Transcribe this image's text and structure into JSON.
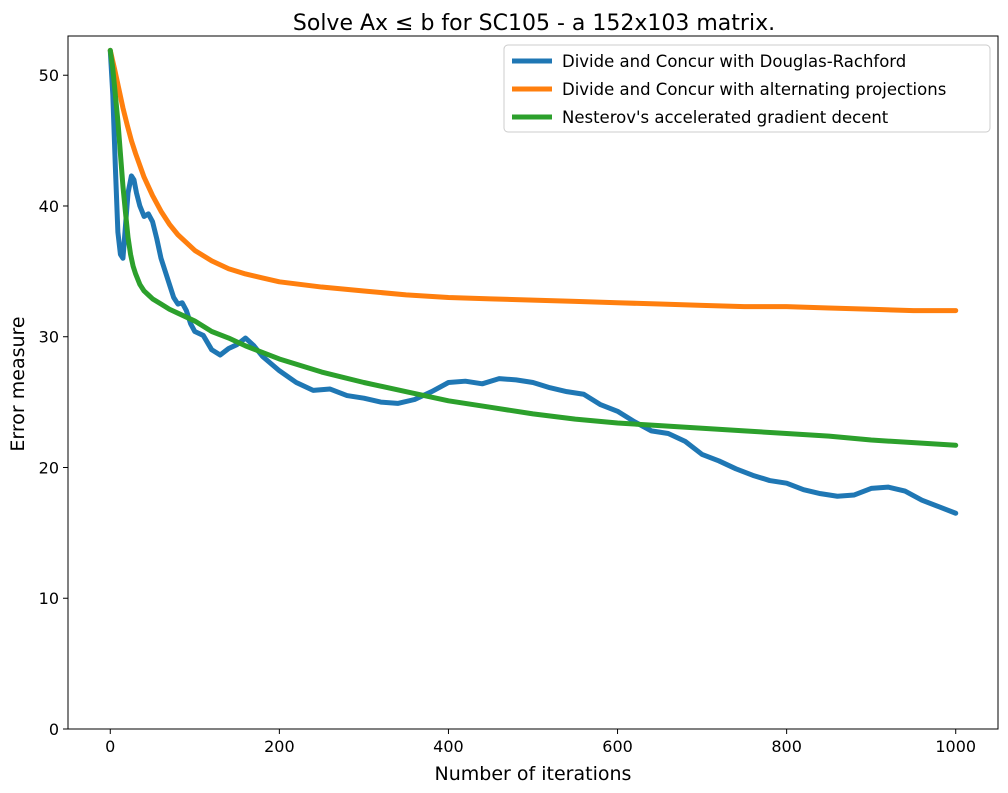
{
  "chart_data": {
    "type": "line",
    "title": "Solve Ax ≤ b for SC105 - a 152x103 matrix.",
    "xlabel": "Number of iterations",
    "ylabel": "Error measure",
    "xlim": [
      -50,
      1050
    ],
    "ylim": [
      0,
      53
    ],
    "xticks": [
      0,
      200,
      400,
      600,
      800,
      1000
    ],
    "yticks": [
      0,
      10,
      20,
      30,
      40,
      50
    ],
    "legend_position": "top-right",
    "grid": false,
    "series": [
      {
        "name": "Divide and Concur with Douglas-Rachford",
        "color": "#1f77b4",
        "x": [
          0,
          3,
          6,
          9,
          12,
          15,
          18,
          21,
          25,
          28,
          31,
          35,
          40,
          45,
          50,
          55,
          60,
          65,
          70,
          75,
          80,
          85,
          90,
          95,
          100,
          110,
          120,
          130,
          140,
          150,
          160,
          170,
          180,
          200,
          220,
          240,
          260,
          280,
          300,
          320,
          340,
          360,
          380,
          400,
          420,
          440,
          460,
          480,
          500,
          520,
          540,
          560,
          580,
          600,
          620,
          640,
          660,
          680,
          700,
          720,
          740,
          760,
          780,
          800,
          820,
          840,
          860,
          880,
          900,
          920,
          940,
          960,
          980,
          1000
        ],
        "y": [
          51.9,
          48.5,
          43.0,
          38.0,
          36.3,
          36.0,
          38.5,
          41.0,
          42.3,
          42.0,
          41.0,
          40.0,
          39.2,
          39.4,
          38.8,
          37.5,
          36.0,
          35.0,
          34.0,
          33.0,
          32.5,
          32.6,
          32.0,
          31.0,
          30.4,
          30.1,
          29.0,
          28.6,
          29.1,
          29.4,
          29.9,
          29.3,
          28.5,
          27.4,
          26.5,
          25.9,
          26.0,
          25.5,
          25.3,
          25.0,
          24.9,
          25.2,
          25.8,
          26.5,
          26.6,
          26.4,
          26.8,
          26.7,
          26.5,
          26.1,
          25.8,
          25.6,
          24.8,
          24.3,
          23.5,
          22.8,
          22.6,
          22.0,
          21.0,
          20.5,
          19.9,
          19.4,
          19.0,
          18.8,
          18.3,
          18.0,
          17.8,
          17.9,
          18.4,
          18.5,
          18.2,
          17.5,
          17.0,
          16.5
        ]
      },
      {
        "name": "Divide and Concur with alternating projections",
        "color": "#ff7f0e",
        "x": [
          0,
          5,
          10,
          15,
          20,
          25,
          30,
          40,
          50,
          60,
          70,
          80,
          90,
          100,
          120,
          140,
          160,
          180,
          200,
          250,
          300,
          350,
          400,
          450,
          500,
          550,
          600,
          650,
          700,
          750,
          800,
          850,
          900,
          950,
          1000
        ],
        "y": [
          51.9,
          50.5,
          49.0,
          47.5,
          46.2,
          45.0,
          44.0,
          42.2,
          40.8,
          39.6,
          38.6,
          37.8,
          37.2,
          36.6,
          35.8,
          35.2,
          34.8,
          34.5,
          34.2,
          33.8,
          33.5,
          33.2,
          33.0,
          32.9,
          32.8,
          32.7,
          32.6,
          32.5,
          32.4,
          32.3,
          32.3,
          32.2,
          32.1,
          32.0,
          32.0
        ]
      },
      {
        "name": "Nesterov's accelerated gradient decent",
        "color": "#2ca02c",
        "x": [
          0,
          3,
          6,
          9,
          12,
          15,
          18,
          21,
          24,
          27,
          30,
          35,
          40,
          45,
          50,
          60,
          70,
          80,
          100,
          120,
          140,
          160,
          180,
          200,
          250,
          300,
          350,
          400,
          450,
          500,
          550,
          600,
          650,
          700,
          750,
          800,
          850,
          900,
          950,
          1000
        ],
        "y": [
          51.9,
          50.5,
          48.5,
          46.5,
          44.0,
          41.5,
          39.5,
          37.6,
          36.3,
          35.4,
          34.8,
          34.0,
          33.5,
          33.2,
          32.9,
          32.5,
          32.1,
          31.8,
          31.2,
          30.4,
          29.9,
          29.3,
          28.8,
          28.3,
          27.3,
          26.5,
          25.8,
          25.1,
          24.6,
          24.1,
          23.7,
          23.4,
          23.2,
          23.0,
          22.8,
          22.6,
          22.4,
          22.1,
          21.9,
          21.7
        ]
      }
    ]
  }
}
